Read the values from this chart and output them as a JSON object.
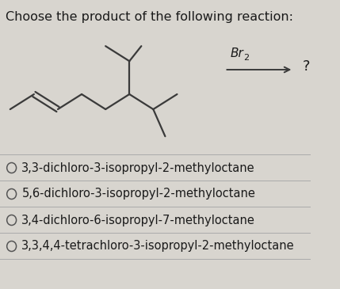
{
  "title": "Choose the product of the following reaction:",
  "title_fontsize": 11.5,
  "reagent_text": "Br",
  "reagent_sub": "2",
  "question_mark": "?",
  "options": [
    "3,3-dichloro-3-isopropyl-2-methyloctane",
    "5,6-dichloro-3-isopropyl-2-methyloctane",
    "3,4-dichloro-6-isopropyl-7-methyloctane",
    "3,3,4,4-tetrachloro-3-isopropyl-2-methyloctane"
  ],
  "option_fontsize": 10.5,
  "bg_color": "#d8d5cf",
  "text_color": "#1a1a1a",
  "circle_color": "#555555",
  "line_color": "#aaaaaa",
  "bond_color": "#3a3a3a",
  "arrow_color": "#3a3a3a",
  "figsize": [
    4.29,
    3.65
  ],
  "dpi": 100
}
